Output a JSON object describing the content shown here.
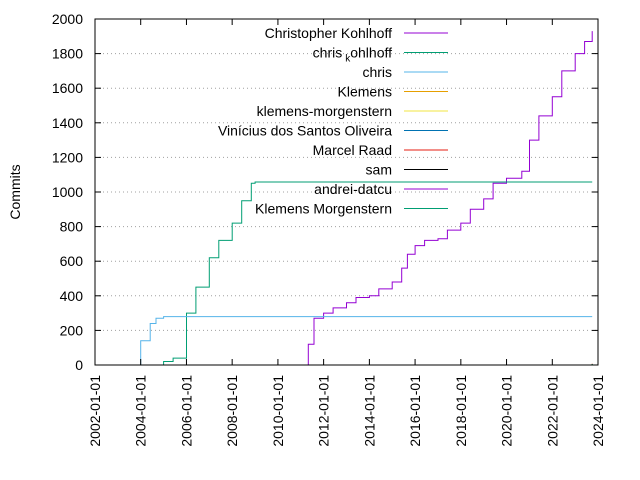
{
  "chart_data": {
    "type": "line",
    "title": "",
    "xlabel": "",
    "ylabel": "Commits",
    "xlim": [
      "2002-01-01",
      "2024-01-01"
    ],
    "ylim": [
      0,
      2000
    ],
    "x_ticks": [
      "2002-01-01",
      "2004-01-01",
      "2006-01-01",
      "2008-01-01",
      "2010-01-01",
      "2012-01-01",
      "2014-01-01",
      "2016-01-01",
      "2018-01-01",
      "2020-01-01",
      "2022-01-01",
      "2024-01-01"
    ],
    "y_ticks": [
      0,
      200,
      400,
      600,
      800,
      1000,
      1200,
      1400,
      1600,
      1800,
      2000
    ],
    "grid": "y-dotted",
    "legend_position": "top-right",
    "series": [
      {
        "name": "Christopher Kohlhoff",
        "color": "#9400d3",
        "points": [
          [
            "2011-04-01",
            0
          ],
          [
            "2011-05-01",
            120
          ],
          [
            "2011-08-01",
            270
          ],
          [
            "2012-01-01",
            300
          ],
          [
            "2012-06-01",
            330
          ],
          [
            "2013-01-01",
            360
          ],
          [
            "2013-06-01",
            390
          ],
          [
            "2014-01-01",
            400
          ],
          [
            "2014-06-01",
            440
          ],
          [
            "2015-01-01",
            480
          ],
          [
            "2015-06-01",
            560
          ],
          [
            "2015-09-01",
            640
          ],
          [
            "2016-01-01",
            690
          ],
          [
            "2016-06-01",
            720
          ],
          [
            "2017-01-01",
            730
          ],
          [
            "2017-06-01",
            780
          ],
          [
            "2018-01-01",
            820
          ],
          [
            "2018-06-01",
            900
          ],
          [
            "2019-01-01",
            960
          ],
          [
            "2019-06-01",
            1050
          ],
          [
            "2020-01-01",
            1080
          ],
          [
            "2020-09-01",
            1120
          ],
          [
            "2021-01-01",
            1300
          ],
          [
            "2021-06-01",
            1440
          ],
          [
            "2022-01-01",
            1550
          ],
          [
            "2022-06-01",
            1700
          ],
          [
            "2023-01-01",
            1800
          ],
          [
            "2023-06-01",
            1870
          ],
          [
            "2023-10-01",
            1930
          ]
        ]
      },
      {
        "name": "chris_kohlhoff",
        "color": "#009e73",
        "points": [
          [
            "2004-06-01",
            0
          ],
          [
            "2005-01-01",
            20
          ],
          [
            "2005-06-01",
            40
          ],
          [
            "2006-01-01",
            300
          ],
          [
            "2006-06-01",
            450
          ],
          [
            "2007-01-01",
            620
          ],
          [
            "2007-06-01",
            720
          ],
          [
            "2008-01-01",
            820
          ],
          [
            "2008-06-01",
            950
          ],
          [
            "2008-11-01",
            1050
          ],
          [
            "2009-01-01",
            1058
          ],
          [
            "2023-10-01",
            1058
          ]
        ]
      },
      {
        "name": "chris",
        "color": "#56b4e9",
        "points": [
          [
            "2003-10-01",
            0
          ],
          [
            "2004-01-01",
            140
          ],
          [
            "2004-06-01",
            240
          ],
          [
            "2004-09-01",
            270
          ],
          [
            "2005-01-01",
            280
          ],
          [
            "2023-10-01",
            280
          ]
        ]
      },
      {
        "name": "Klemens",
        "color": "#e69f00",
        "points": [
          [
            "2022-01-01",
            0
          ],
          [
            "2023-10-01",
            5
          ]
        ]
      },
      {
        "name": "klemens-morgenstern",
        "color": "#f0e442",
        "points": [
          [
            "2021-09-01",
            0
          ],
          [
            "2023-10-01",
            3
          ]
        ]
      },
      {
        "name": "Vinícius dos Santos Oliveira",
        "color": "#0072b2",
        "points": [
          [
            "2020-01-01",
            0
          ],
          [
            "2023-10-01",
            2
          ]
        ]
      },
      {
        "name": "Marcel Raad",
        "color": "#e51e10",
        "points": [
          [
            "2022-01-01",
            0
          ],
          [
            "2023-10-01",
            7
          ]
        ]
      },
      {
        "name": "sam",
        "color": "#000000",
        "points": [
          [
            "2021-06-01",
            0
          ],
          [
            "2023-10-01",
            4
          ]
        ]
      },
      {
        "name": "andrei-datcu",
        "color": "#9400d3",
        "points": [
          [
            "2022-09-01",
            0
          ],
          [
            "2023-10-01",
            2
          ]
        ]
      },
      {
        "name": "Klemens Morgenstern",
        "color": "#009e73",
        "points": [
          [
            "2022-03-01",
            0
          ],
          [
            "2023-10-01",
            6
          ]
        ]
      }
    ]
  }
}
